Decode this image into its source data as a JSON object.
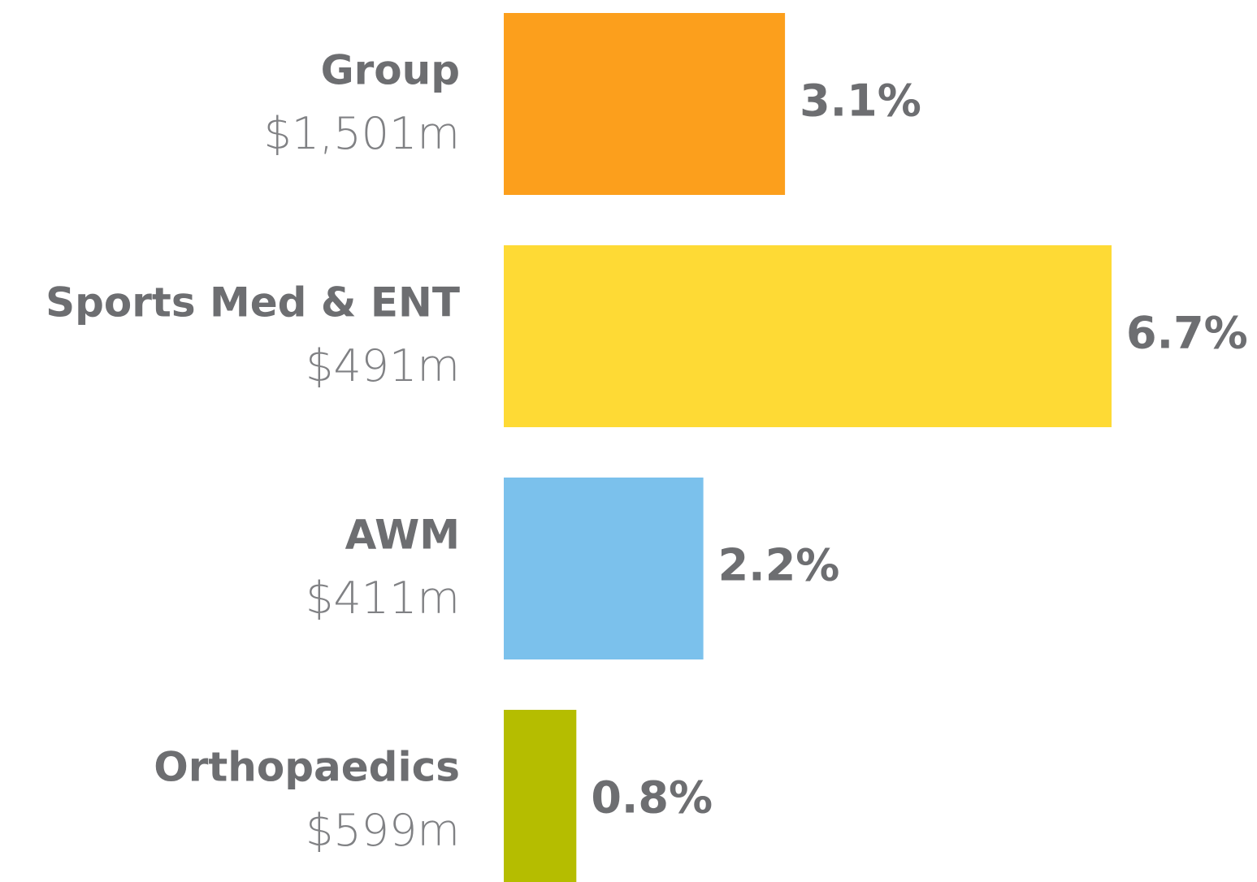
{
  "chart_data": {
    "type": "bar",
    "categories": [
      "Group",
      "Sports Med & ENT",
      "AWM",
      "Orthopaedics"
    ],
    "category_sublabels": [
      "$1,501m",
      "$491m",
      "$411m",
      "$599m"
    ],
    "values": [
      3.1,
      6.7,
      2.2,
      0.8
    ],
    "value_labels": [
      "3.1%",
      "6.7%",
      "2.2%",
      "0.8%"
    ],
    "colors": [
      "#fc9f1c",
      "#feda35",
      "#7bc1ec",
      "#b5bd00"
    ]
  }
}
